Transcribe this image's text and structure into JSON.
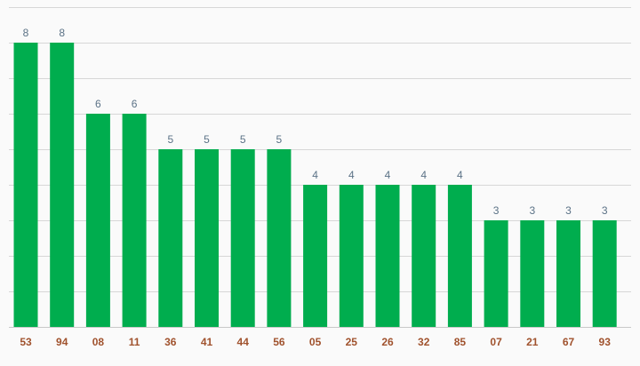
{
  "chart_data": {
    "type": "bar",
    "categories": [
      "53",
      "94",
      "08",
      "11",
      "36",
      "41",
      "44",
      "56",
      "05",
      "25",
      "26",
      "32",
      "85",
      "07",
      "21",
      "67",
      "93"
    ],
    "series": [
      {
        "values": [
          8,
          8,
          6,
          6,
          5,
          5,
          5,
          5,
          4,
          4,
          4,
          4,
          4,
          3,
          3,
          3,
          3
        ]
      }
    ],
    "ylim": [
      0,
      9
    ],
    "grid": true,
    "legend": "none"
  },
  "colors": {
    "bar": "#00ad4e",
    "value_label": "#5b7286",
    "tick_label": "#a0522d",
    "grid": "#d7d7d7",
    "background": "#fafafa"
  }
}
